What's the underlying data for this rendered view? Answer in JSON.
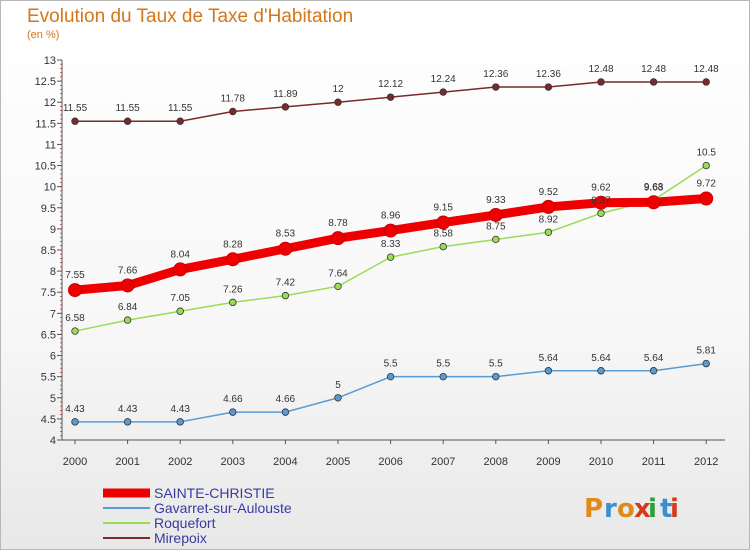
{
  "chart_data": {
    "type": "line",
    "title": "Evolution du Taux de Taxe d'Habitation",
    "subtitle": "(en %)",
    "x": [
      "2000",
      "2001",
      "2002",
      "2003",
      "2004",
      "2005",
      "2006",
      "2007",
      "2008",
      "2009",
      "2010",
      "2011",
      "2012"
    ],
    "ylim": [
      4,
      13
    ],
    "yticks": [
      "4",
      "4.5",
      "5",
      "5.5",
      "6",
      "6.5",
      "7",
      "7.5",
      "8",
      "8.5",
      "9",
      "9.5",
      "10",
      "10.5",
      "11",
      "11.5",
      "12",
      "12.5",
      "13"
    ],
    "grid": false,
    "legend_position": "bottom-left",
    "series": [
      {
        "name": "SAINTE-CHRISTIE",
        "color": "#ee0000",
        "values": [
          7.55,
          7.66,
          8.04,
          8.28,
          8.53,
          8.78,
          8.96,
          9.15,
          9.33,
          9.52,
          9.62,
          9.63,
          9.72
        ],
        "labels": [
          "7.55",
          "7.66",
          "8.04",
          "8.28",
          "8.53",
          "8.78",
          "8.96",
          "9.15",
          "9.33",
          "9.52",
          "9.62",
          "9.63",
          "9.72"
        ]
      },
      {
        "name": "Gavarret-sur-Aulouste",
        "color": "#5b9bd5",
        "values": [
          4.43,
          4.43,
          4.43,
          4.66,
          4.66,
          5,
          5.5,
          5.5,
          5.5,
          5.64,
          5.64,
          5.64,
          5.81
        ],
        "labels": [
          "4.43",
          "4.43",
          "4.43",
          "4.66",
          "4.66",
          "5",
          "5.5",
          "5.5",
          "5.5",
          "5.64",
          "5.64",
          "5.64",
          "5.81"
        ]
      },
      {
        "name": "Roquefort",
        "color": "#99dd55",
        "values": [
          6.58,
          6.84,
          7.05,
          7.26,
          7.42,
          7.64,
          8.33,
          8.58,
          8.75,
          8.92,
          9.37,
          9.68,
          10.5
        ],
        "labels": [
          "6.58",
          "6.84",
          "7.05",
          "7.26",
          "7.42",
          "7.64",
          "8.33",
          "8.58",
          "8.75",
          "8.92",
          "9.37",
          "9.68",
          "10.5"
        ]
      },
      {
        "name": "Mirepoix",
        "color": "#7a2a2a",
        "values": [
          11.55,
          11.55,
          11.55,
          11.78,
          11.89,
          12,
          12.12,
          12.24,
          12.36,
          12.36,
          12.48,
          12.48,
          12.48
        ],
        "labels": [
          "11.55",
          "11.55",
          "11.55",
          "11.78",
          "11.89",
          "12",
          "12.12",
          "12.24",
          "12.36",
          "12.36",
          "12.48",
          "12.48",
          "12.48"
        ]
      }
    ]
  },
  "logo": {
    "text": "Proxiti",
    "colors": [
      "#e08a1a",
      "#3a8fd0",
      "#e08a1a",
      "#d43a1a",
      "#2aa03a",
      "#3a8fd0",
      "#d43a1a"
    ]
  }
}
